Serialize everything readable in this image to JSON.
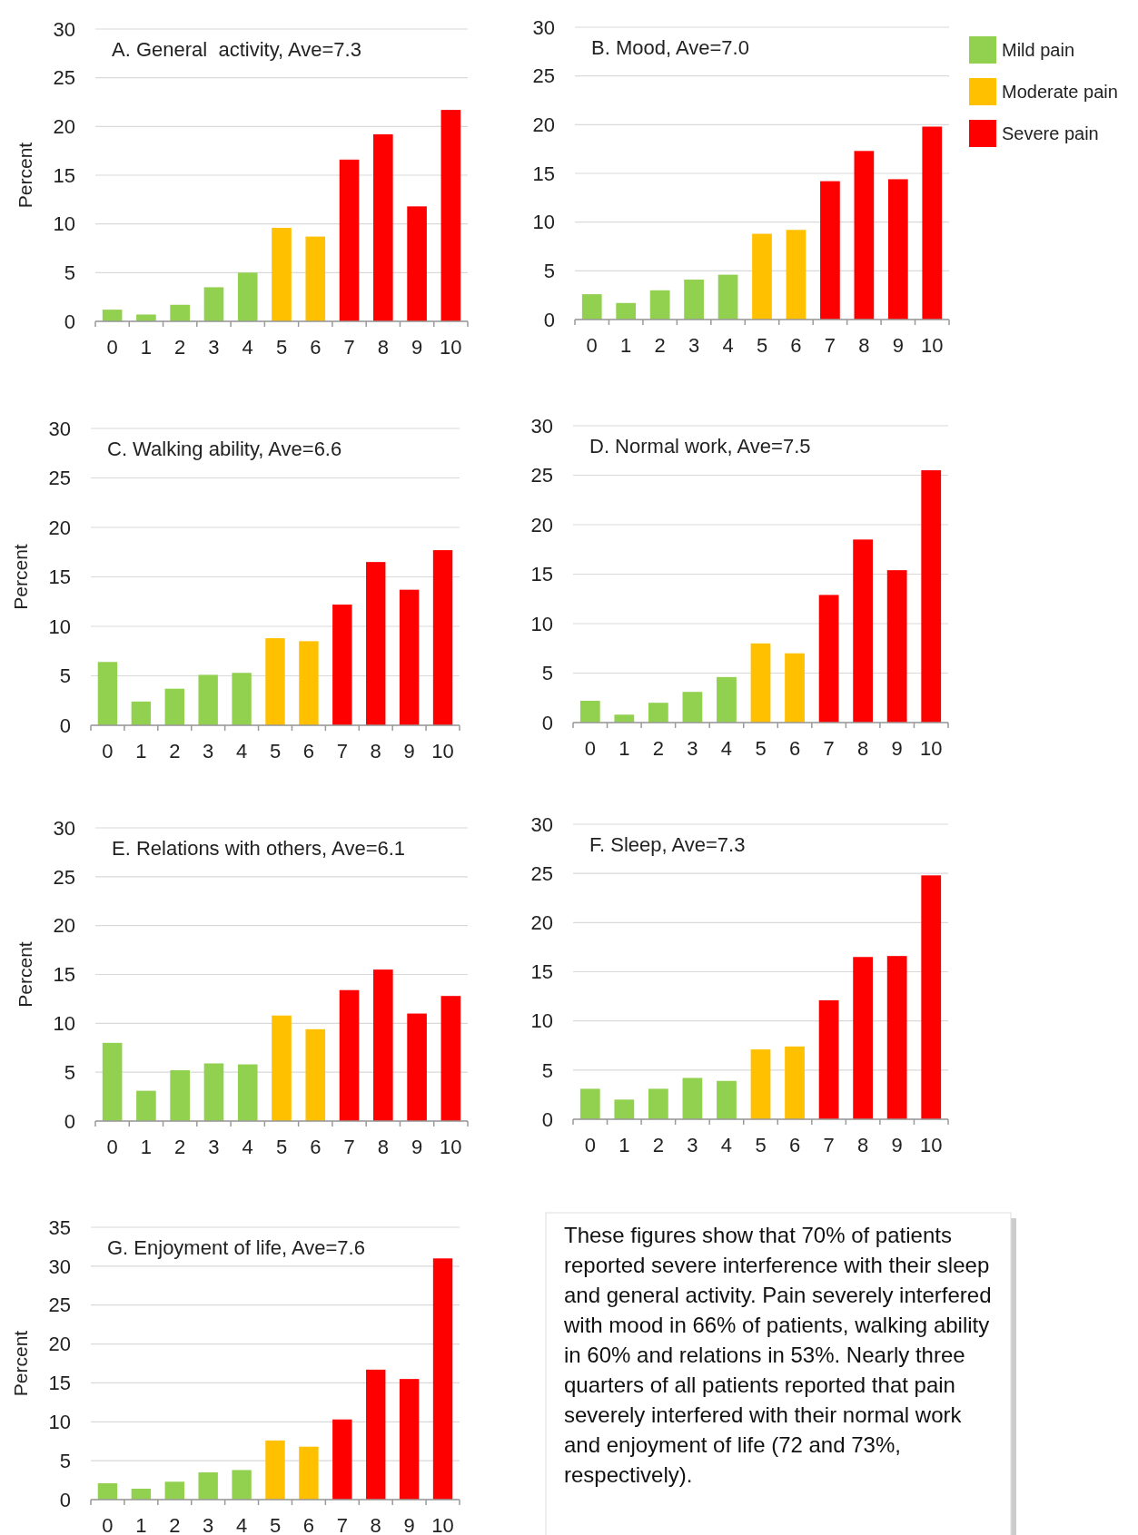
{
  "chart_data": [
    {
      "type": "bar",
      "stacked": true,
      "title": "A. General  activity, Ave=7.3",
      "ylabel": "Percent",
      "categories": [
        "0",
        "1",
        "2",
        "3",
        "4",
        "5",
        "6",
        "7",
        "8",
        "9",
        "10"
      ],
      "ylim": [
        0,
        30
      ],
      "yticks": [
        0,
        5,
        10,
        15,
        20,
        25,
        30
      ],
      "grid": "y",
      "series": [
        {
          "color": "#92d050",
          "values": [
            1.2,
            0.7,
            1.7,
            3.5,
            5.0,
            null,
            null,
            null,
            null,
            null,
            null
          ]
        },
        {
          "color": "#ffc000",
          "values": [
            null,
            null,
            null,
            null,
            null,
            9.6,
            8.7,
            null,
            null,
            null,
            null
          ]
        },
        {
          "color": "#ff0000",
          "values": [
            null,
            null,
            null,
            null,
            null,
            null,
            null,
            16.6,
            19.2,
            11.8,
            21.7
          ]
        }
      ]
    },
    {
      "type": "bar",
      "stacked": true,
      "title": "B. Mood, Ave=7.0",
      "legend": "right",
      "categories": [
        "0",
        "1",
        "2",
        "3",
        "4",
        "5",
        "6",
        "7",
        "8",
        "9",
        "10"
      ],
      "ylim": [
        0,
        30
      ],
      "yticks": [
        0,
        5,
        10,
        15,
        20,
        25,
        30
      ],
      "grid": "y",
      "series": [
        {
          "name": "Mild pain",
          "color": "#92d050",
          "values": [
            2.6,
            1.7,
            3.0,
            4.1,
            4.6,
            null,
            null,
            null,
            null,
            null,
            null
          ]
        },
        {
          "name": "Moderate pain",
          "color": "#ffc000",
          "values": [
            null,
            null,
            null,
            null,
            null,
            8.8,
            9.2,
            null,
            null,
            null,
            null
          ]
        },
        {
          "name": "Severe pain",
          "color": "#ff0000",
          "values": [
            null,
            null,
            null,
            null,
            null,
            null,
            null,
            14.2,
            17.3,
            14.4,
            19.8
          ]
        }
      ]
    },
    {
      "type": "bar",
      "stacked": true,
      "title": "C. Walking ability, Ave=6.6",
      "ylabel": "Percent",
      "categories": [
        "0",
        "1",
        "2",
        "3",
        "4",
        "5",
        "6",
        "7",
        "8",
        "9",
        "10"
      ],
      "ylim": [
        0,
        30
      ],
      "yticks": [
        0,
        5,
        10,
        15,
        20,
        25,
        30
      ],
      "grid": "y",
      "series": [
        {
          "color": "#92d050",
          "values": [
            6.4,
            2.4,
            3.7,
            5.1,
            5.3,
            null,
            null,
            null,
            null,
            null,
            null
          ]
        },
        {
          "color": "#ffc000",
          "values": [
            null,
            null,
            null,
            null,
            null,
            8.8,
            8.5,
            null,
            null,
            null,
            null
          ]
        },
        {
          "color": "#ff0000",
          "values": [
            null,
            null,
            null,
            null,
            null,
            null,
            null,
            12.2,
            16.5,
            13.7,
            17.7
          ]
        }
      ]
    },
    {
      "type": "bar",
      "stacked": true,
      "title": "D. Normal work, Ave=7.5",
      "categories": [
        "0",
        "1",
        "2",
        "3",
        "4",
        "5",
        "6",
        "7",
        "8",
        "9",
        "10"
      ],
      "ylim": [
        0,
        30
      ],
      "yticks": [
        0,
        5,
        10,
        15,
        20,
        25,
        30
      ],
      "grid": "y",
      "series": [
        {
          "color": "#92d050",
          "values": [
            2.2,
            0.8,
            2.0,
            3.1,
            4.6,
            null,
            null,
            null,
            null,
            null,
            null
          ]
        },
        {
          "color": "#ffc000",
          "values": [
            null,
            null,
            null,
            null,
            null,
            8.0,
            7.0,
            null,
            null,
            null,
            null
          ]
        },
        {
          "color": "#ff0000",
          "values": [
            null,
            null,
            null,
            null,
            null,
            null,
            null,
            12.9,
            18.5,
            15.4,
            25.5
          ]
        }
      ]
    },
    {
      "type": "bar",
      "stacked": true,
      "title": "E. Relations with others, Ave=6.1",
      "ylabel": "Percent",
      "categories": [
        "0",
        "1",
        "2",
        "3",
        "4",
        "5",
        "6",
        "7",
        "8",
        "9",
        "10"
      ],
      "ylim": [
        0,
        30
      ],
      "yticks": [
        0,
        5,
        10,
        15,
        20,
        25,
        30
      ],
      "grid": "y",
      "series": [
        {
          "color": "#92d050",
          "values": [
            8.0,
            3.1,
            5.2,
            5.9,
            5.8,
            null,
            null,
            null,
            null,
            null,
            null
          ]
        },
        {
          "color": "#ffc000",
          "values": [
            null,
            null,
            null,
            null,
            null,
            10.8,
            9.4,
            null,
            null,
            null,
            null
          ]
        },
        {
          "color": "#ff0000",
          "values": [
            null,
            null,
            null,
            null,
            null,
            null,
            null,
            13.4,
            15.5,
            11.0,
            12.8
          ]
        }
      ]
    },
    {
      "type": "bar",
      "stacked": true,
      "title": "F. Sleep, Ave=7.3",
      "categories": [
        "0",
        "1",
        "2",
        "3",
        "4",
        "5",
        "6",
        "7",
        "8",
        "9",
        "10"
      ],
      "ylim": [
        0,
        30
      ],
      "yticks": [
        0,
        5,
        10,
        15,
        20,
        25,
        30
      ],
      "grid": "y",
      "series": [
        {
          "color": "#92d050",
          "values": [
            3.1,
            2.0,
            3.1,
            4.2,
            3.9,
            null,
            null,
            null,
            null,
            null,
            null
          ]
        },
        {
          "color": "#ffc000",
          "values": [
            null,
            null,
            null,
            null,
            null,
            7.1,
            7.4,
            null,
            null,
            null,
            null
          ]
        },
        {
          "color": "#ff0000",
          "values": [
            null,
            null,
            null,
            null,
            null,
            null,
            null,
            12.1,
            16.5,
            16.6,
            24.8
          ]
        }
      ]
    },
    {
      "type": "bar",
      "stacked": true,
      "title": "G. Enjoyment of life, Ave=7.6",
      "ylabel": "Percent",
      "categories": [
        "0",
        "1",
        "2",
        "3",
        "4",
        "5",
        "6",
        "7",
        "8",
        "9",
        "10"
      ],
      "ylim": [
        0,
        35
      ],
      "yticks": [
        0,
        5,
        10,
        15,
        20,
        25,
        30,
        35
      ],
      "grid": "y",
      "series": [
        {
          "color": "#92d050",
          "values": [
            2.1,
            1.4,
            2.3,
            3.5,
            3.8,
            null,
            null,
            null,
            null,
            null,
            null
          ]
        },
        {
          "color": "#ffc000",
          "values": [
            null,
            null,
            null,
            null,
            null,
            7.6,
            6.8,
            null,
            null,
            null,
            null
          ]
        },
        {
          "color": "#ff0000",
          "values": [
            null,
            null,
            null,
            null,
            null,
            null,
            null,
            10.3,
            16.7,
            15.5,
            31.0
          ]
        }
      ]
    },
    {
      "type": "other",
      "annotations": [
        "These figures show that 70% of patients reported severe interference with their sleep and general activity. Pain severely interfered with mood in 66% of patients, walking ability in 60% and relations in 53%. Nearly three quarters of all patients reported that pain severely interfered with their normal work and enjoyment of life (72 and 73%, respectively)."
      ]
    }
  ]
}
